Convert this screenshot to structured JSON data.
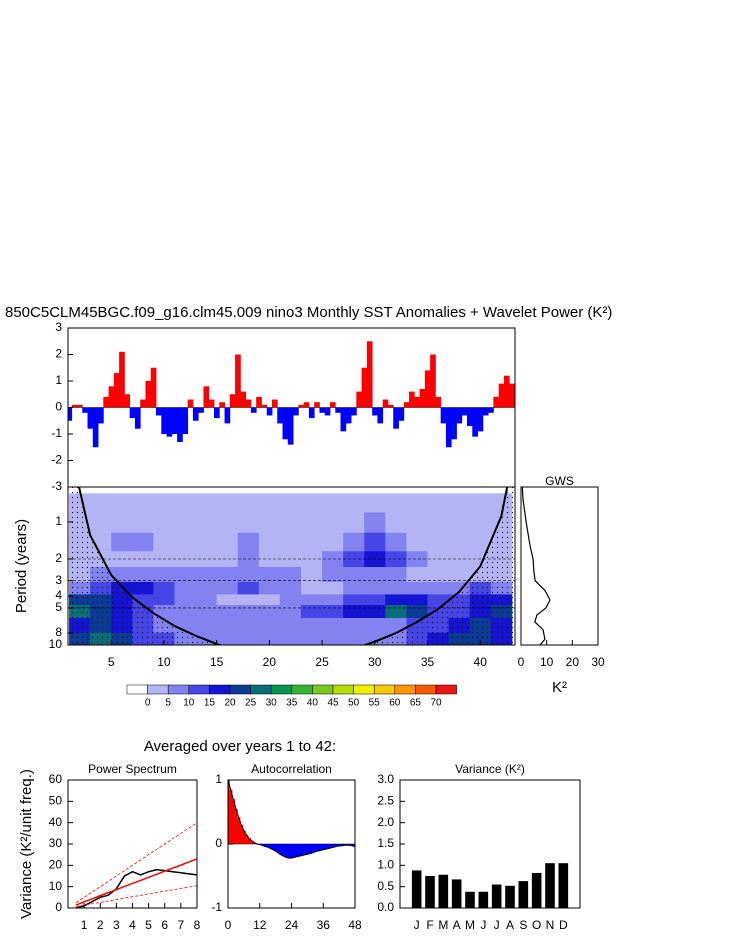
{
  "section_title": "Averaged over years 1 to 42:",
  "chart_data": [
    {
      "type": "bar",
      "title": "850C5CLM45BGC.f09_g16.clm45.009 nino3 Monthly SST Anomalies + Wavelet Power (K²)",
      "x": [
        1,
        1.5,
        2,
        2.5,
        3,
        3.5,
        4,
        4.5,
        5,
        5.5,
        6,
        6.5,
        7,
        7.5,
        8,
        8.5,
        9,
        9.5,
        10,
        10.5,
        11,
        11.5,
        12,
        12.5,
        13,
        13.5,
        14,
        14.5,
        15,
        15.5,
        16,
        16.5,
        17,
        17.5,
        18,
        18.5,
        19,
        19.5,
        20,
        20.5,
        21,
        21.5,
        22,
        22.5,
        23,
        23.5,
        24,
        24.5,
        25,
        25.5,
        26,
        26.5,
        27,
        27.5,
        28,
        28.5,
        29,
        29.5,
        30,
        30.5,
        31,
        31.5,
        32,
        32.5,
        33,
        33.5,
        34,
        34.5,
        35,
        35.5,
        36,
        36.5,
        37,
        37.5,
        38,
        38.5,
        39,
        39.5,
        40,
        40.5,
        41,
        41.5,
        42,
        42.5,
        43
      ],
      "values": [
        -0.5,
        0.1,
        0.1,
        -0.2,
        -0.8,
        -1.5,
        -0.6,
        0.4,
        0.8,
        1.3,
        2.1,
        0.5,
        -0.4,
        -0.8,
        0.3,
        1.0,
        1.5,
        -0.3,
        -1.0,
        -1.1,
        -1.0,
        -1.3,
        -1.0,
        0.3,
        -0.5,
        -0.2,
        0.8,
        0.3,
        -0.4,
        0.2,
        -0.6,
        0.5,
        2.0,
        0.6,
        0.3,
        -0.2,
        0.4,
        0.1,
        -0.3,
        0.3,
        -0.6,
        -1.2,
        -1.4,
        -0.3,
        0.1,
        0.2,
        -0.4,
        0.2,
        -0.2,
        -0.3,
        0.2,
        -0.2,
        -0.9,
        -0.6,
        -0.3,
        0.6,
        1.5,
        2.5,
        -0.3,
        -0.6,
        0.3,
        0.1,
        -0.8,
        -0.5,
        0.2,
        0.6,
        0.4,
        0.7,
        1.4,
        2.0,
        0.4,
        -0.6,
        -1.5,
        -1.2,
        -0.6,
        -0.3,
        -0.7,
        -1.1,
        -0.9,
        -0.3,
        -0.2,
        0.4,
        0.9,
        1.2,
        0.9
      ],
      "pos_color": "#ff0000",
      "neg_color": "#0000ff",
      "xlim": [
        0.9,
        43.3
      ],
      "ylim": [
        -3,
        3
      ],
      "yticks": [
        -3,
        -2,
        -1,
        0,
        1,
        2,
        3
      ]
    },
    {
      "type": "contour",
      "ylabel": "Period (years)",
      "x": [
        2,
        4,
        6,
        8,
        10,
        12,
        14,
        16,
        18,
        20,
        22,
        24,
        26,
        28,
        30,
        32,
        34,
        36,
        38,
        40,
        42
      ],
      "periods": [
        0.7,
        1,
        1.5,
        2,
        2.7,
        3.5,
        4.3,
        5.2,
        7,
        9
      ],
      "power": [
        [
          2,
          2,
          2,
          2,
          2,
          2,
          2,
          2,
          2,
          2,
          2,
          2,
          2,
          2,
          2,
          2,
          2,
          2,
          2,
          2,
          2
        ],
        [
          3,
          3,
          3,
          3,
          3,
          3,
          3,
          3,
          3,
          3,
          3,
          3,
          3,
          3,
          6,
          3,
          3,
          3,
          3,
          3,
          3
        ],
        [
          3,
          4,
          7,
          7,
          3,
          3,
          3,
          4,
          6,
          3,
          3,
          3,
          3,
          8,
          12,
          8,
          3,
          3,
          3,
          3,
          3
        ],
        [
          3.5,
          3.5,
          3.5,
          3.5,
          3.5,
          3.5,
          3.5,
          3.5,
          6,
          3.5,
          3.5,
          3.5,
          6,
          12,
          17,
          11,
          5,
          3.5,
          3.5,
          3.5,
          3.5
        ],
        [
          3,
          6,
          8,
          9,
          7,
          6,
          6,
          7,
          8,
          7,
          6,
          4,
          6,
          8,
          9,
          7,
          4,
          3,
          3,
          3,
          3
        ],
        [
          8,
          12,
          16,
          17,
          12,
          8,
          7,
          8,
          12,
          7,
          5,
          4,
          4,
          5,
          6,
          6,
          7,
          8,
          9,
          10,
          8
        ],
        [
          22,
          20,
          18,
          14,
          10,
          7,
          5,
          4,
          4,
          4,
          5,
          6,
          8,
          12,
          14,
          16,
          18,
          14,
          12,
          15,
          18
        ],
        [
          27,
          22,
          18,
          12,
          8,
          6,
          5,
          5,
          6,
          7,
          8,
          10,
          12,
          15,
          17,
          26,
          22,
          12,
          14,
          18,
          22
        ],
        [
          18,
          20,
          15,
          10,
          8,
          7,
          7,
          8,
          8,
          8,
          7,
          6,
          5,
          5,
          6,
          7,
          10,
          14,
          18,
          20,
          16
        ],
        [
          22,
          26,
          20,
          14,
          10,
          8,
          7,
          6,
          6,
          5,
          5,
          5,
          5,
          5,
          6,
          8,
          12,
          18,
          24,
          22,
          18
        ]
      ],
      "levels": [
        0,
        5,
        10,
        15,
        20,
        25,
        30,
        35,
        40,
        45,
        50,
        55,
        60,
        65,
        70
      ],
      "colors": [
        "#ffffff",
        "#b4b4f5",
        "#8282f0",
        "#4646e6",
        "#1414d2",
        "#0a3c96",
        "#0a6e78",
        "#0a9650",
        "#32b432",
        "#78c81e",
        "#b4dc0a",
        "#f0f000",
        "#fac800",
        "#fa9600",
        "#f55a00",
        "#e61414"
      ],
      "coi_x": [
        1.9,
        3,
        5,
        7,
        9,
        11,
        13,
        15,
        16,
        22,
        28.5,
        30,
        32,
        34,
        36,
        38,
        40,
        42,
        42.6
      ],
      "coi": [
        0.5,
        1.28,
        2.7,
        4.1,
        5.5,
        7.0,
        8.4,
        9.8,
        10.5,
        null,
        10.4,
        9.4,
        8.0,
        6.5,
        5.1,
        3.7,
        2.3,
        0.9,
        0.5
      ],
      "reference_periods": [
        2,
        3,
        5
      ],
      "log_y": true,
      "xlim": [
        0.9,
        43.3
      ],
      "xticks": [
        5,
        10,
        15,
        20,
        25,
        30,
        35,
        40
      ],
      "ylim": [
        0.52,
        10
      ],
      "yticks": [
        1,
        2,
        3,
        4,
        5,
        8,
        10
      ]
    },
    {
      "type": "profile",
      "title": "GWS",
      "xlabel": "K²",
      "periods": [
        0.52,
        0.66,
        1,
        1.55,
        2,
        2.5,
        3,
        3.6,
        4.3,
        5,
        5.7,
        6.5,
        7.5,
        9,
        10
      ],
      "values": [
        0.5,
        0.8,
        2,
        3.5,
        4.7,
        5,
        5.5,
        9.3,
        11.3,
        9.7,
        6.2,
        5.4,
        8.6,
        9.3,
        7.4
      ],
      "color": "#000000",
      "log_y": true,
      "xlim": [
        0,
        30
      ],
      "xticks": [
        0,
        10,
        20,
        30
      ],
      "ylim": [
        0.52,
        10
      ]
    },
    {
      "type": "line",
      "title": "Power Spectrum",
      "ylabel": "Variance (K²/unit freq.)",
      "x": [
        0.5,
        1,
        1.5,
        2,
        2.5,
        3,
        3.5,
        4,
        4.5,
        5,
        5.5,
        6,
        6.5,
        7,
        7.5,
        8
      ],
      "series": [
        {
          "color": "#000000",
          "dash": false,
          "values": [
            0,
            1,
            3,
            5,
            6,
            9,
            15,
            17,
            15.5,
            17,
            18,
            17.5,
            17,
            16.5,
            16,
            15.5
          ]
        },
        {
          "color": "#ff0000",
          "dash": false,
          "values": [
            1.4,
            2.9,
            4.3,
            5.8,
            7.2,
            8.6,
            10.1,
            11.5,
            12.9,
            14.4,
            15.8,
            17.3,
            18.7,
            20.1,
            21.6,
            23
          ]
        },
        {
          "color": "#ff0000",
          "dash": true,
          "values": [
            2.5,
            5,
            7.5,
            10,
            12.5,
            15,
            17.5,
            20,
            22.5,
            25,
            27.5,
            30,
            32.5,
            35,
            37.5,
            40
          ]
        },
        {
          "color": "#ff0000",
          "dash": true,
          "values": [
            0.7,
            1.3,
            2,
            2.6,
            3.3,
            3.9,
            4.6,
            5.3,
            5.9,
            6.6,
            7.2,
            7.9,
            8.5,
            9.2,
            9.8,
            10.5
          ]
        }
      ],
      "xlim": [
        0,
        8
      ],
      "xticks": [
        1,
        2,
        3,
        4,
        5,
        6,
        7,
        8
      ],
      "ylim": [
        0,
        60
      ],
      "yticks": [
        0,
        10,
        20,
        30,
        40,
        50,
        60
      ]
    },
    {
      "type": "area",
      "title": "Autocorrelation",
      "x": [
        0,
        1,
        2,
        3,
        4,
        5,
        6,
        7,
        8,
        9,
        10,
        11,
        12,
        13,
        14,
        15,
        16,
        17,
        18,
        19,
        20,
        21,
        22,
        23,
        24,
        25,
        26,
        27,
        28,
        29,
        30,
        31,
        32,
        33,
        34,
        35,
        36,
        37,
        38,
        39,
        40,
        41,
        42,
        43,
        44,
        45,
        46,
        47,
        48
      ],
      "values": [
        1.0,
        0.85,
        0.7,
        0.55,
        0.42,
        0.3,
        0.21,
        0.14,
        0.09,
        0.05,
        0.02,
        0,
        -0.01,
        -0.02,
        -0.04,
        -0.05,
        -0.07,
        -0.09,
        -0.11,
        -0.14,
        -0.17,
        -0.19,
        -0.21,
        -0.22,
        -0.22,
        -0.21,
        -0.2,
        -0.19,
        -0.18,
        -0.17,
        -0.16,
        -0.15,
        -0.14,
        -0.12,
        -0.11,
        -0.1,
        -0.09,
        -0.08,
        -0.07,
        -0.06,
        -0.05,
        -0.04,
        -0.03,
        -0.03,
        -0.02,
        -0.02,
        -0.02,
        -0.03,
        -0.04
      ],
      "pos_color": "#ff0000",
      "neg_color": "#0000ff",
      "xlim": [
        0,
        48
      ],
      "xticks": [
        0,
        12,
        24,
        36,
        48
      ],
      "ylim": [
        -1,
        1
      ],
      "yticks": [
        -1,
        0,
        1
      ]
    },
    {
      "type": "bar",
      "title": "Variance (K²)",
      "categories": [
        "J",
        "F",
        "M",
        "A",
        "M",
        "J",
        "J",
        "A",
        "S",
        "O",
        "N",
        "D"
      ],
      "values": [
        0.88,
        0.75,
        0.78,
        0.67,
        0.38,
        0.38,
        0.55,
        0.52,
        0.63,
        0.82,
        1.05,
        1.05
      ],
      "color": "#000000",
      "ylim": [
        0,
        3
      ],
      "yticks": [
        {
          "value": 0,
          "label": "0.0"
        },
        {
          "value": 0.5,
          "label": "0.5"
        },
        {
          "value": 1,
          "label": "1.0"
        },
        {
          "value": 1.5,
          "label": "1.5"
        },
        {
          "value": 2,
          "label": "2.0"
        },
        {
          "value": 2.5,
          "label": "2.5"
        },
        {
          "value": 3,
          "label": "3.0"
        }
      ]
    }
  ]
}
